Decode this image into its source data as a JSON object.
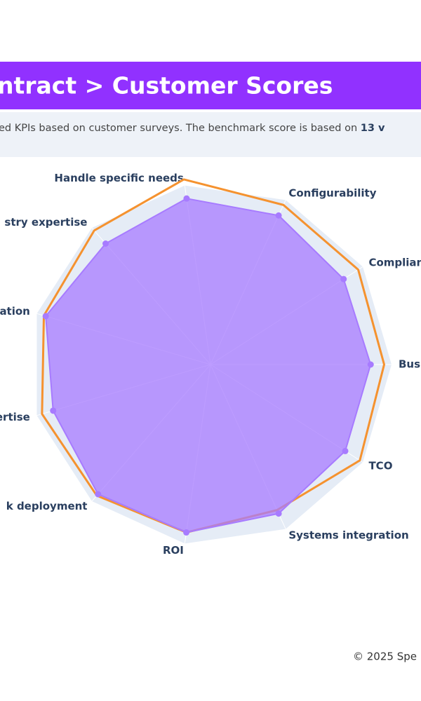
{
  "header": {
    "title": "ntract > Customer Scores",
    "subtitle": "ed KPIs based on customer surveys. The benchmark score is based on ",
    "subtitle_bold": "13 v"
  },
  "chart_data": {
    "type": "radar",
    "categories": [
      "Busi",
      "Complian",
      "Configurability",
      "Handle specific needs",
      "stry expertise",
      "ation",
      "ertise",
      "k deployment",
      "ROI",
      "Systems integration",
      "TCO"
    ],
    "rlim": [
      0,
      10
    ],
    "series": [
      {
        "color": "#f5922f",
        "values": [
          9.0,
          9.1,
          9.1,
          9.7,
          9.2,
          9.0,
          9.1,
          9.0,
          8.8,
          8.3,
          9.2
        ]
      },
      {
        "color": "#a77bff",
        "values": [
          8.3,
          8.2,
          8.5,
          8.7,
          8.3,
          8.9,
          8.5,
          8.9,
          8.8,
          8.5,
          8.3
        ]
      }
    ]
  },
  "footer": {
    "text": "© 2025 Spe"
  }
}
